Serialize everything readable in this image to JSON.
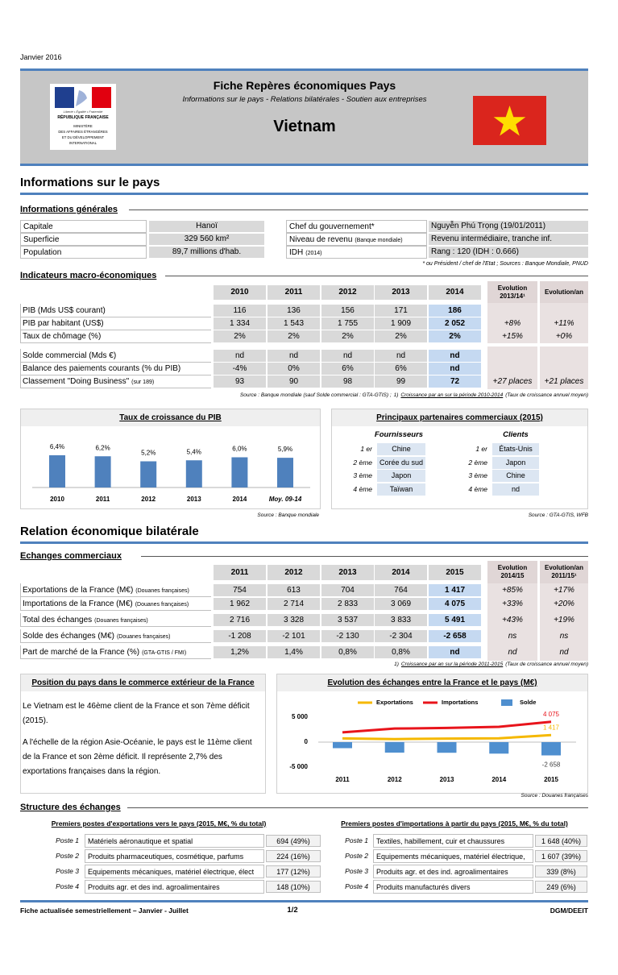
{
  "header": {
    "date": "Janvier 2016",
    "title": "Fiche Repères économiques Pays",
    "subtitle": "Informations sur le pays - Relations bilatérales - Soutien aux entreprises",
    "country": "Vietnam",
    "logo": {
      "motto": "Liberté • Égalité • Fraternité",
      "republic": "RÉPUBLIQUE FRANÇAISE",
      "ministry": [
        "MINISTÈRE",
        "DES AFFAIRES ÉTRANGÈRES",
        "ET DU DÉVELOPPEMENT",
        "INTERNATIONAL"
      ]
    }
  },
  "country_info": {
    "title": "Informations sur le pays",
    "general": {
      "heading": "Informations générales",
      "left": [
        {
          "label": "Capitale",
          "value": "Hanoï"
        },
        {
          "label": "Superficie",
          "value": "329 560 km²"
        },
        {
          "label": "Population",
          "value": "89,7 millions d'hab."
        }
      ],
      "right": [
        {
          "label": "Chef du gouvernement*",
          "value": "Nguyễn Phú Trọng (19/01/2011)"
        },
        {
          "label": "Niveau de revenu",
          "note": "(Banque mondiale)",
          "value": "Revenu intermédiaire, tranche inf."
        },
        {
          "label": "IDH",
          "note": "(2014)",
          "value": "Rang : 120 (IDH : 0.666)"
        }
      ],
      "note": "* ou Président / chef de l'Etat  ; Sources : Banque Mondiale, PNUD"
    },
    "macro": {
      "heading": "Indicateurs macro-économiques",
      "columns": [
        "2010",
        "2011",
        "2012",
        "2013",
        "2014"
      ],
      "evolution_headers": [
        [
          "Evolution",
          "2013/14¹"
        ],
        [
          "Evolution/an"
        ]
      ],
      "rows": [
        {
          "label": "PIB (Mds US$ courant)",
          "values": [
            "116",
            "136",
            "156",
            "171",
            "186"
          ]
        },
        {
          "label": "PIB par habitant (US$)",
          "values": [
            "1 334",
            "1 543",
            "1 755",
            "1 909",
            "2 052"
          ],
          "evolution": [
            "+8%",
            "+11%"
          ]
        },
        {
          "label": "Taux de chômage (%)",
          "values": [
            "2%",
            "2%",
            "2%",
            "2%",
            "2%"
          ],
          "evolution": [
            "+15%",
            "+0%"
          ]
        },
        {
          "label": "Solde commercial (Mds €)",
          "values": [
            "nd",
            "nd",
            "nd",
            "nd",
            "nd"
          ]
        },
        {
          "label": "Balance des paiements courants (% du PIB)",
          "values": [
            "-4%",
            "0%",
            "6%",
            "6%",
            "nd"
          ]
        },
        {
          "label": "Classement \"Doing Business\"",
          "note": "(sur 189)",
          "values": [
            "93",
            "90",
            "98",
            "99",
            "72"
          ],
          "evolution": [
            "+27 places",
            "+21 places"
          ]
        }
      ],
      "source": "Source : Banque mondiale (sauf Solde commercial : GTA-GTIS) ;",
      "footnote_marker": "1)",
      "footnote": "Croissance par an sur la période 2010-2014",
      "footnote_note": "(Taux de croissance annuel moyen)"
    },
    "partners": {
      "title": "Principaux partenaires commerciaux (2015)",
      "suppliers_heading": "Fournisseurs",
      "clients_heading": "Clients",
      "ranks": [
        "1 er",
        "2 ème",
        "3 ème",
        "4 ème"
      ],
      "suppliers": [
        "Chine",
        "Corée du sud",
        "Japon",
        "Taïwan"
      ],
      "clients": [
        "États-Unis",
        "Japon",
        "Chine",
        "nd"
      ],
      "source": "Source : GTA-GTIS, WFB"
    }
  },
  "bilateral": {
    "title": "Relation économique bilatérale",
    "trade": {
      "heading": "Echanges commerciaux",
      "columns": [
        "2011",
        "2012",
        "2013",
        "2014",
        "2015"
      ],
      "evolution_headers": [
        [
          "Evolution",
          "2014/15"
        ],
        [
          "Evolution/an",
          "2011/15¹"
        ]
      ],
      "rows": [
        {
          "label": "Exportations de la France (M€)",
          "note": "(Douanes françaises)",
          "values": [
            "754",
            "613",
            "704",
            "764",
            "1 417"
          ],
          "evolution": [
            "+85%",
            "+17%"
          ]
        },
        {
          "label": "Importations de la France (M€)",
          "note": "(Douanes françaises)",
          "values": [
            "1 962",
            "2 714",
            "2 833",
            "3 069",
            "4 075"
          ],
          "evolution": [
            "+33%",
            "+20%"
          ]
        },
        {
          "label": "Total des échanges",
          "note": "(Douanes françaises)",
          "values": [
            "2 716",
            "3 328",
            "3 537",
            "3 833",
            "5 491"
          ],
          "evolution": [
            "+43%",
            "+19%"
          ]
        },
        {
          "label": "Solde des échanges (M€)",
          "note": "(Douanes françaises)",
          "values": [
            "-1 208",
            "-2 101",
            "-2 130",
            "-2 304",
            "-2 658"
          ],
          "evolution": [
            "ns",
            "ns"
          ]
        },
        {
          "label": "Part de marché de la France (%)",
          "note": "(GTA-GTIS / FMI)",
          "values": [
            "1,2%",
            "1,4%",
            "0,8%",
            "0,8%",
            "nd"
          ],
          "evolution": [
            "nd",
            "nd"
          ]
        }
      ],
      "footnote_marker": "1)",
      "footnote": "Croissance par an sur la période 2011-2015",
      "footnote_note": "(Taux de croissance annuel moyen)"
    },
    "position": {
      "title": "Position du pays dans le commerce extérieur de la France",
      "paragraphs": [
        "Le Vietnam est le 46ème client de la France et son 7ème déficit (2015).",
        "A l'échelle de la région Asie-Océanie, le pays est le 11ème client de la France et son 2ème déficit. Il représente 2,7% des exportations françaises dans la région."
      ]
    },
    "structure": {
      "heading": "Structure des échanges",
      "exports": {
        "title": "Premiers postes d'exportations vers le pays (2015, M€, % du total)",
        "rows": [
          [
            "Poste 1",
            "Matériels aéronautique et spatial",
            "694 (49%)"
          ],
          [
            "Poste 2",
            "Produits pharmaceutiques, cosmétique, parfums",
            "224 (16%)"
          ],
          [
            "Poste 3",
            "Equipements mécaniques, matériel électrique, élect",
            "177 (12%)"
          ],
          [
            "Poste 4",
            "Produits agr. et des ind. agroalimentaires",
            "148 (10%)"
          ]
        ]
      },
      "imports": {
        "title": "Premiers postes d'importations à partir du pays (2015, M€, % du total)",
        "rows": [
          [
            "Poste 1",
            "Textiles, habillement, cuir et chaussures",
            "1 648 (40%)"
          ],
          [
            "Poste 2",
            "Equipements mécaniques, matériel électrique,",
            "1 607 (39%)"
          ],
          [
            "Poste 3",
            "Produits agr. et des ind. agroalimentaires",
            "339 (8%)"
          ],
          [
            "Poste 4",
            "Produits manufacturés divers",
            "249 (6%)"
          ]
        ]
      }
    }
  },
  "chart_data": [
    {
      "type": "bar",
      "title": "Taux de croissance du PIB",
      "categories": [
        "2010",
        "2011",
        "2012",
        "2013",
        "2014",
        "Moy. 09-14"
      ],
      "values": [
        6.4,
        6.2,
        5.2,
        5.4,
        6.0,
        5.9
      ],
      "value_labels": [
        "6,4%",
        "6,2%",
        "5,2%",
        "5,4%",
        "6,0%",
        "5,9%"
      ],
      "color": "#4f81bd",
      "source": "Source : Banque mondiale"
    },
    {
      "type": "combo",
      "title": "Evolution des échanges entre la France et le pays (M€)",
      "categories": [
        "2011",
        "2012",
        "2013",
        "2014",
        "2015"
      ],
      "series": [
        {
          "name": "Exportations",
          "type": "line",
          "color": "#f5b800",
          "values": [
            754,
            613,
            704,
            764,
            1417
          ],
          "value_labels": [
            null,
            null,
            null,
            null,
            "1 417"
          ]
        },
        {
          "name": "Importations",
          "type": "line",
          "color": "#e8141b",
          "values": [
            1962,
            2714,
            2833,
            3069,
            4075
          ],
          "value_labels": [
            null,
            null,
            null,
            null,
            "4 075"
          ]
        },
        {
          "name": "Solde",
          "type": "bar",
          "color": "#4f8fcf",
          "values": [
            -1208,
            -2101,
            -2130,
            -2304,
            -2658
          ],
          "value_labels": [
            null,
            null,
            null,
            null,
            "-2 658"
          ]
        }
      ],
      "ylim": [
        -7000,
        7500
      ],
      "yticks": [
        {
          "value": -5000,
          "label": "-5 000"
        },
        0,
        {
          "value": 5000,
          "label": "5 000"
        }
      ],
      "source": "Source : Douanes françaises"
    }
  ],
  "footer": {
    "left": "Fiche actualisée semestriellement – Janvier - Juillet",
    "page": "1/2",
    "right": "DGM/DEEIT"
  }
}
